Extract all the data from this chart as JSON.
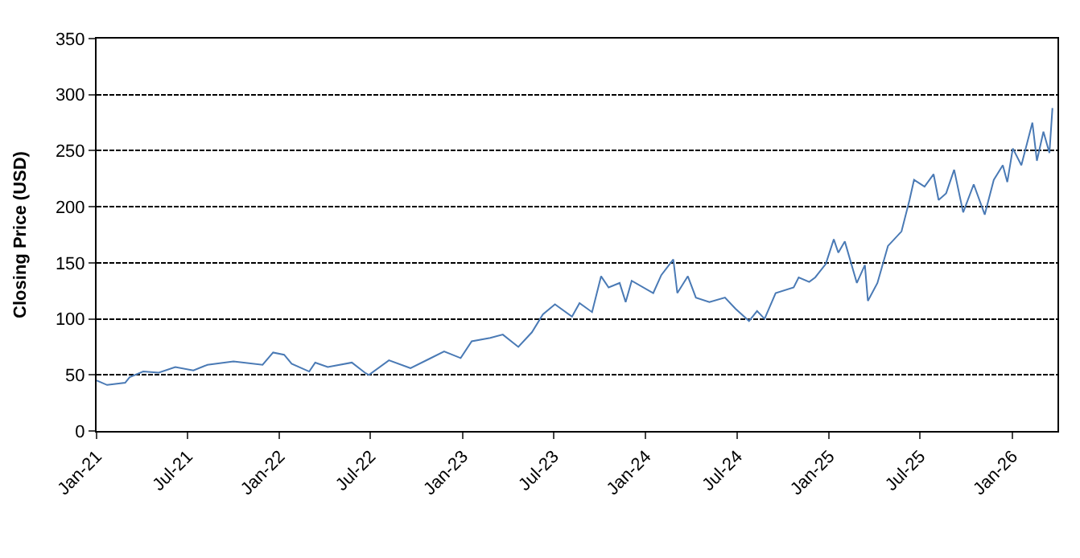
{
  "chart_data": {
    "type": "line",
    "ylabel": "Closing Price (USD)",
    "xlim": [
      "2021-01-01",
      "2026-04-01"
    ],
    "xticks": [
      {
        "value": "2021-01-01",
        "label": "Jan-21"
      },
      {
        "value": "2021-07-01",
        "label": "Jul-21"
      },
      {
        "value": "2022-01-01",
        "label": "Jan-22"
      },
      {
        "value": "2022-07-01",
        "label": "Jul-22"
      },
      {
        "value": "2023-01-01",
        "label": "Jan-23"
      },
      {
        "value": "2023-07-01",
        "label": "Jul-23"
      },
      {
        "value": "2024-01-01",
        "label": "Jan-24"
      },
      {
        "value": "2024-07-01",
        "label": "Jul-24"
      },
      {
        "value": "2025-01-01",
        "label": "Jan-25"
      },
      {
        "value": "2025-07-01",
        "label": "Jul-25"
      },
      {
        "value": "2026-01-01",
        "label": "Jan-26"
      }
    ],
    "ylim": [
      0,
      350
    ],
    "yticks": [
      0,
      50,
      100,
      150,
      200,
      250,
      300,
      350
    ],
    "grid": "y",
    "marker": "none",
    "line_style": "solid",
    "x": [
      "2021-01-01",
      "2021-01-22",
      "2021-02-27",
      "2021-03-08",
      "2021-04-04",
      "2021-05-05",
      "2021-06-07",
      "2021-07-13",
      "2021-08-10",
      "2021-10-01",
      "2021-11-28",
      "2021-12-19",
      "2022-01-10",
      "2022-01-25",
      "2022-03-01",
      "2022-03-13",
      "2022-04-07",
      "2022-05-25",
      "2022-06-20",
      "2022-06-28",
      "2022-08-07",
      "2022-09-19",
      "2022-10-25",
      "2022-11-25",
      "2022-12-28",
      "2023-01-19",
      "2023-02-25",
      "2023-03-22",
      "2023-04-22",
      "2023-05-19",
      "2023-06-10",
      "2023-07-04",
      "2023-08-07",
      "2023-08-22",
      "2023-09-16",
      "2023-10-04",
      "2023-10-19",
      "2023-11-10",
      "2023-11-22",
      "2023-12-04",
      "2024-01-16",
      "2024-02-01",
      "2024-02-25",
      "2024-03-04",
      "2024-03-25",
      "2024-04-10",
      "2024-05-07",
      "2024-06-07",
      "2024-06-28",
      "2024-07-25",
      "2024-08-10",
      "2024-08-25",
      "2024-09-16",
      "2024-10-22",
      "2024-11-01",
      "2024-11-22",
      "2024-12-04",
      "2024-12-25",
      "2025-01-10",
      "2025-01-19",
      "2025-02-01",
      "2025-02-25",
      "2025-03-13",
      "2025-03-19",
      "2025-04-07",
      "2025-04-28",
      "2025-05-25",
      "2025-06-10",
      "2025-06-19",
      "2025-07-10",
      "2025-07-28",
      "2025-08-07",
      "2025-08-22",
      "2025-09-07",
      "2025-09-25",
      "2025-10-16",
      "2025-11-07",
      "2025-11-25",
      "2025-12-13",
      "2025-12-22",
      "2026-01-02",
      "2026-01-19",
      "2026-02-10",
      "2026-02-19",
      "2026-03-04",
      "2026-03-16",
      "2026-03-22"
    ],
    "series": [
      {
        "color": "#4a7ab5",
        "values": [
          45,
          41,
          43,
          48,
          53,
          52,
          57,
          54,
          59,
          62,
          59,
          70,
          68,
          60,
          53,
          61,
          57,
          61,
          52,
          50,
          63,
          56,
          64,
          71,
          65,
          80,
          83,
          86,
          75,
          88,
          104,
          113,
          102,
          114,
          106,
          138,
          128,
          132,
          115,
          134,
          123,
          139,
          153,
          123,
          138,
          119,
          115,
          119,
          109,
          98,
          107,
          100,
          123,
          128,
          137,
          133,
          137,
          149,
          171,
          159,
          169,
          132,
          148,
          116,
          132,
          165,
          178,
          206,
          224,
          218,
          229,
          206,
          212,
          233,
          195,
          220,
          193,
          224,
          237,
          222,
          252,
          237,
          275,
          241,
          267,
          248,
          288
        ]
      }
    ]
  }
}
